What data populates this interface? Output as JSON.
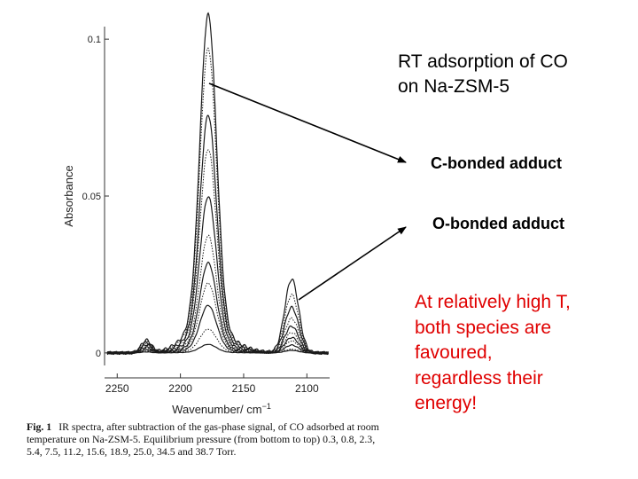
{
  "chart_data": {
    "type": "line",
    "xlabel": "Wavenumber/ cm",
    "xlabel_sup": "−1",
    "ylabel": "Absorbance",
    "x_ticks": [
      2250,
      2200,
      2150,
      2100
    ],
    "y_ticks": [
      {
        "value": 0,
        "label": "0"
      },
      {
        "value": 0.05,
        "label": "0.05"
      },
      {
        "value": 0.1,
        "label": "0.1"
      }
    ],
    "xlim": [
      2260,
      2082
    ],
    "ylim": [
      -0.004,
      0.104
    ],
    "x_reversed": true,
    "peaks": {
      "main": {
        "center": 2178,
        "width": 6.5
      },
      "second": {
        "center": 2112,
        "width": 5.5
      },
      "small": {
        "center": 2227,
        "width": 4
      }
    },
    "series": [
      {
        "main": 0.0025,
        "second": 0.0008,
        "small": 0.0003,
        "style": "solid"
      },
      {
        "main": 0.007,
        "second": 0.0012,
        "small": 0.0006,
        "style": "dotted"
      },
      {
        "main": 0.014,
        "second": 0.0025,
        "small": 0.001,
        "style": "solid"
      },
      {
        "main": 0.0205,
        "second": 0.0038,
        "small": 0.0014,
        "style": "dotted"
      },
      {
        "main": 0.0265,
        "second": 0.0049,
        "small": 0.0018,
        "style": "solid"
      },
      {
        "main": 0.0345,
        "second": 0.0065,
        "small": 0.0022,
        "style": "dotted"
      },
      {
        "main": 0.046,
        "second": 0.0085,
        "small": 0.0026,
        "style": "solid"
      },
      {
        "main": 0.06,
        "second": 0.011,
        "small": 0.003,
        "style": "dotted"
      },
      {
        "main": 0.07,
        "second": 0.0145,
        "small": 0.0033,
        "style": "solid"
      },
      {
        "main": 0.0895,
        "second": 0.0185,
        "small": 0.0037,
        "style": "dotted"
      },
      {
        "main": 0.0995,
        "second": 0.0235,
        "small": 0.004,
        "style": "solid"
      }
    ]
  },
  "annotations": {
    "title_line1": "RT adsorption of CO",
    "title_line2": "on Na-ZSM-5",
    "c_bonded": "C-bonded adduct",
    "o_bonded": "O-bonded adduct",
    "note_lines": [
      "At relatively high T,",
      "both species are",
      "favoured,",
      "regardless their",
      "energy!"
    ],
    "note_color": "#e00000",
    "arrow_color": "#000000"
  },
  "caption": {
    "lead": "Fig. 1",
    "text": "IR spectra, after subtraction of the gas-phase signal, of CO adsorbed at room temperature on Na-ZSM-5. Equilibrium pressure (from bottom to top) 0.3, 0.8, 2.3, 5.4, 7.5, 11.2, 15.6, 18.9, 25.0, 34.5 and 38.7 Torr."
  }
}
